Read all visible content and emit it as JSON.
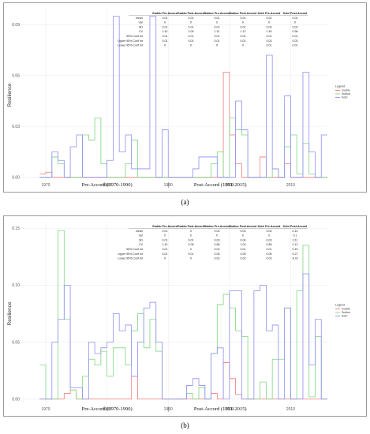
{
  "captions": [
    "(a)",
    "(b)"
  ],
  "chart_data": [
    {
      "type": "line",
      "step": true,
      "ylabel": "Resilience",
      "xlim": [
        1966,
        2016
      ],
      "ylim": [
        -0.002,
        0.099
      ],
      "xticks": [
        1970,
        1980,
        1990,
        2000,
        2010
      ],
      "yticks": [
        0.0,
        0.03,
        0.06,
        0.09
      ],
      "ytick_labels": [
        "0.00",
        "0.03",
        "0.06",
        "0.09"
      ],
      "grid": true,
      "legend": {
        "title": "Legend",
        "position": "right",
        "entries": [
          "Guddu",
          "Sukkur",
          "Kotri"
        ]
      },
      "colors": {
        "Guddu": "#f27a7a",
        "Sukkur": "#7ed67e",
        "Kotri": "#8f8ff2"
      },
      "era_labels": [
        "Pre-Accord (1970-1990)",
        "Post-Accord (1991-2015)"
      ],
      "stats_table": {
        "columns": [
          "Guddu Pre-Accord",
          "Guddu Post-Accord",
          "Sukkur Pre-Accord",
          "Sukkur Post-Accord",
          "Kotri Pre-Accord",
          "Kotri Post-Accord"
        ],
        "rows": [
          {
            "label": "mean",
            "values": [
              "0.01",
              "0.01",
              "0.01",
              "0.01",
              "0.02",
              "0.02"
            ]
          },
          {
            "label": "Var",
            "values": [
              "0",
              "0",
              "0",
              "0",
              "0",
              "0"
            ]
          },
          {
            "label": "SD",
            "values": [
              "0.01",
              "0.01",
              "0.01",
              "0.01",
              "0.03",
              "0.02"
            ]
          },
          {
            "label": "CV",
            "values": [
              "1.42",
              "2.09",
              "1.31",
              "1.12",
              "1.45",
              "0.96"
            ]
          },
          {
            "label": "95% Conf Int",
            "values": [
              "0.01",
              "0.01",
              "0.01",
              "0.01",
              "0.01",
              "0.01"
            ]
          },
          {
            "label": "Upper 95% Conf Int",
            "values": [
              "0.01",
              "0.01",
              "0.01",
              "0.02",
              "0.03",
              "0.03"
            ]
          },
          {
            "label": "Lower 95% Conf Int",
            "values": [
              "0",
              "0",
              "0",
              "0",
              "0.01",
              "0.01"
            ]
          }
        ]
      },
      "series": [
        {
          "name": "Guddu",
          "x_start": 1969,
          "values": [
            0.002,
            0.003,
            0.0,
            0.0,
            0.0,
            0.0,
            0.0,
            0.0,
            0.0,
            0.0,
            0.0,
            0.0,
            0.0,
            0.0,
            0.0,
            0.0,
            0.0,
            0.0,
            0.0,
            0.0,
            0.0,
            0.0,
            0.0,
            0.0,
            0.0,
            0.0,
            0.0,
            0.0,
            0.0,
            0.0,
            0.062,
            0.025,
            0.008,
            0.0,
            0.0,
            0.0,
            0.012,
            0.0,
            0.0,
            0.0,
            0.008,
            0.0,
            0.0,
            0.0,
            0.0,
            0.0,
            0.0
          ]
        },
        {
          "name": "Sukkur",
          "x_start": 1969,
          "values": [
            0.0,
            0.0,
            0.012,
            0.008,
            0.0,
            0.0,
            0.0,
            0.025,
            0.022,
            0.035,
            0.008,
            0.0,
            0.0,
            0.0,
            0.008,
            0.022,
            0.0,
            0.0,
            0.0,
            0.0,
            0.0,
            0.0,
            0.0,
            0.0,
            0.0,
            0.0,
            0.0,
            0.0,
            0.008,
            0.015,
            0.0,
            0.035,
            0.028,
            0.025,
            0.0,
            0.0,
            0.0,
            0.0,
            0.005,
            0.0,
            0.018,
            0.025,
            0.002,
            0.02,
            0.002,
            0.0,
            0.0
          ]
        },
        {
          "name": "Kotri",
          "x_start": 1969,
          "values": [
            0.0,
            0.0,
            0.015,
            0.01,
            0.0,
            0.018,
            0.025,
            0.0,
            0.0,
            0.0,
            0.0,
            0.01,
            0.095,
            0.015,
            0.025,
            0.005,
            0.005,
            0.005,
            0.095,
            0.0,
            0.028,
            0.0,
            0.0,
            0.0,
            0.0,
            0.005,
            0.012,
            0.012,
            0.012,
            0.0,
            0.0,
            0.0,
            0.045,
            0.028,
            0.0,
            0.0,
            0.0,
            0.072,
            0.005,
            0.0,
            0.048,
            0.0,
            0.0,
            0.062,
            0.015,
            0.0,
            0.025
          ]
        }
      ]
    },
    {
      "type": "line",
      "step": true,
      "ylabel": "Resilience",
      "xlim": [
        1966,
        2016
      ],
      "ylim": [
        -0.005,
        0.155
      ],
      "xticks": [
        1970,
        1980,
        1990,
        2000,
        2010
      ],
      "yticks": [
        0.0,
        0.05,
        0.1,
        0.15
      ],
      "ytick_labels": [
        "0.00",
        "0.05",
        "0.10",
        "0.15"
      ],
      "grid": true,
      "legend": {
        "title": "Legend",
        "position": "right",
        "entries": [
          "Guddu",
          "Sukkur",
          "Kotri"
        ]
      },
      "colors": {
        "Guddu": "#f27a7a",
        "Sukkur": "#7ed67e",
        "Kotri": "#8f8ff2"
      },
      "era_labels": [
        "Pre-Accord (1970-1990)",
        "Post-Accord (1991-2015)"
      ],
      "stats_table": {
        "columns": [
          "Guddu Pre-Accord",
          "Guddu Post-Accord",
          "Sukkur Pre-Accord",
          "Sukkur Post-Accord",
          "Kotri Pre-Accord",
          "Kotri Post-Accord"
        ],
        "rows": [
          {
            "label": "mean",
            "values": [
              "0.01",
              "0",
              "0.04",
              "0.03",
              "0.04",
              "0.14"
            ]
          },
          {
            "label": "Var",
            "values": [
              "0",
              "0",
              "0",
              "0",
              "0",
              "0.1"
            ]
          },
          {
            "label": "SD",
            "values": [
              "0.01",
              "0.01",
              "0.03",
              "0.04",
              "0.03",
              "0.11"
            ]
          },
          {
            "label": "CV",
            "values": [
              "1.42",
              "2.08",
              "0.86",
              "1.03",
              "0.86",
              "2.12"
            ]
          },
          {
            "label": "95% Conf Int",
            "values": [
              "0.01",
              "0",
              "0.02",
              "0.01",
              "0.01",
              "0.15"
            ]
          },
          {
            "label": "Upper 95% Conf Int",
            "values": [
              "0.01",
              "0.01",
              "0.05",
              "0.05",
              "0.05",
              "0.27"
            ]
          },
          {
            "label": "Lower 95% Conf Int",
            "values": [
              "0",
              "0",
              "0.02",
              "0.02",
              "0.03",
              "-0.01"
            ]
          }
        ]
      },
      "series": [
        {
          "name": "Guddu",
          "x_start": 1969,
          "values": [
            0.0,
            0.0,
            0.0,
            0.0,
            0.005,
            0.008,
            0.0,
            0.0,
            0.0,
            0.0,
            0.0,
            0.0,
            0.0,
            0.0,
            0.0,
            0.02,
            0.0,
            0.0,
            0.0,
            0.0,
            0.0,
            0.0,
            0.0,
            0.0,
            0.0,
            0.0,
            0.0,
            0.0,
            0.005,
            0.0,
            0.032,
            0.018,
            0.004,
            0.0,
            0.0,
            0.0,
            0.0,
            0.0,
            0.0,
            0.0,
            0.0,
            0.0,
            0.0,
            0.0,
            0.0,
            0.0,
            0.0
          ]
        },
        {
          "name": "Sukkur",
          "x_start": 1969,
          "values": [
            0.03,
            0.0,
            0.0,
            0.148,
            0.07,
            0.008,
            0.0,
            0.02,
            0.035,
            0.03,
            0.042,
            0.02,
            0.045,
            0.045,
            0.03,
            0.06,
            0.075,
            0.045,
            0.07,
            0.042,
            0.0,
            0.0,
            0.0,
            0.0,
            0.005,
            0.0,
            0.01,
            0.0,
            0.04,
            0.083,
            0.092,
            0.08,
            0.06,
            0.055,
            0.0,
            0.0,
            0.015,
            0.0,
            0.035,
            0.035,
            0.08,
            0.0,
            0.095,
            0.135,
            0.002,
            0.055,
            0.0
          ]
        },
        {
          "name": "Kotri",
          "x_start": 1969,
          "values": [
            0.0,
            0.0,
            0.05,
            0.07,
            0.1,
            0.01,
            0.01,
            0.0,
            0.05,
            0.04,
            0.045,
            0.05,
            0.075,
            0.06,
            0.065,
            0.02,
            0.05,
            0.08,
            0.085,
            0.05,
            0.0,
            0.0,
            0.0,
            0.0,
            0.012,
            0.018,
            0.012,
            0.0,
            0.04,
            0.045,
            0.0,
            0.095,
            0.095,
            0.0,
            0.0,
            0.095,
            0.1,
            0.06,
            0.065,
            0.0,
            0.08,
            0.0,
            0.0,
            0.11,
            0.03,
            0.07,
            0.0
          ]
        }
      ]
    }
  ]
}
